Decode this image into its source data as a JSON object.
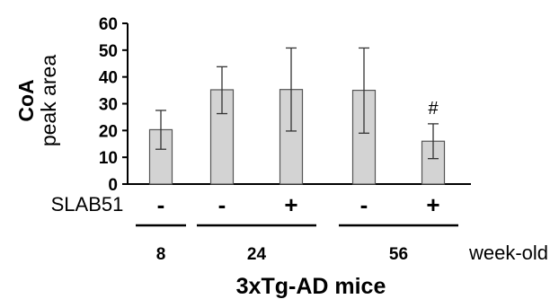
{
  "chart_data": {
    "type": "bar",
    "ylabel_bold": "CoA",
    "ylabel": "peak area",
    "ylim": [
      0,
      60
    ],
    "yticks": [
      "0",
      "10",
      "20",
      "30",
      "40",
      "50",
      "60"
    ],
    "ytick_values": [
      0,
      10,
      20,
      30,
      40,
      50,
      60
    ],
    "values": [
      20.3,
      35.2,
      35.3,
      35.0,
      16.0
    ],
    "error_high": [
      27.5,
      43.8,
      50.8,
      50.8,
      22.5
    ],
    "error_low": [
      13.0,
      26.3,
      19.8,
      19.0,
      9.5
    ],
    "treatment_label": "SLAB51",
    "treatments": [
      "-",
      "-",
      "+",
      "-",
      "+"
    ],
    "groups": [
      {
        "label": "8",
        "bars": [
          0
        ]
      },
      {
        "label": "24",
        "bars": [
          1,
          2
        ]
      },
      {
        "label": "56",
        "bars": [
          3,
          4
        ]
      }
    ],
    "group_unit": "week-old",
    "xlabel": "3xTg-AD mice",
    "annotations": [
      {
        "bar": 4,
        "text": "#"
      }
    ],
    "bar_color": "#d3d3d3",
    "edge_color": "#555555",
    "grid": false,
    "legend": "none"
  }
}
